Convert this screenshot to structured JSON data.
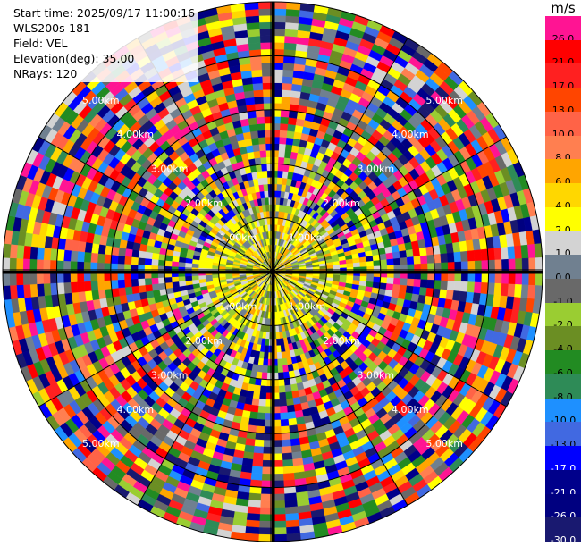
{
  "header": {
    "start_time": "Start time: 2025/09/17 11:00:16",
    "station": "WLS200s-181",
    "field": "Field: VEL",
    "elevation": "Elevation(deg): 35.00",
    "nrays": "NRays: 120"
  },
  "colorbar": {
    "unit": "m/s",
    "levels": [
      {
        "label": "26.0",
        "color": "#ff1493"
      },
      {
        "label": "21.0",
        "color": "#ff0000"
      },
      {
        "label": "17.0",
        "color": "#ff2020"
      },
      {
        "label": "13.0",
        "color": "#ff4500"
      },
      {
        "label": "10.0",
        "color": "#ff6347"
      },
      {
        "label": "8.0",
        "color": "#ff7f50"
      },
      {
        "label": "6.0",
        "color": "#ffa500"
      },
      {
        "label": "4.0",
        "color": "#ffd700"
      },
      {
        "label": "2.0",
        "color": "#ffff00"
      },
      {
        "label": "1.0",
        "color": "#d3d3d3"
      },
      {
        "label": "0.0",
        "color": "#708090"
      },
      {
        "label": "-1.0",
        "color": "#696969"
      },
      {
        "label": "-2.0",
        "color": "#9acd32"
      },
      {
        "label": "-4.0",
        "color": "#6b8e23"
      },
      {
        "label": "-6.0",
        "color": "#228b22"
      },
      {
        "label": "-8.0",
        "color": "#2e8b57"
      },
      {
        "label": "-10.0",
        "color": "#1e90ff"
      },
      {
        "label": "-13.0",
        "color": "#4169e1"
      },
      {
        "label": "-17.0",
        "color": "#0000ff"
      },
      {
        "label": "-21.0",
        "color": "#00008b"
      },
      {
        "label": "-26.0",
        "color": "#000080"
      },
      {
        "label": "-30.0",
        "color": "#191970"
      }
    ]
  },
  "chart_data": {
    "type": "heatmap",
    "projection": "polar PPI",
    "nrays": 120,
    "range_ring_labels": [
      "1.00km",
      "2.00km",
      "3.00km",
      "4.00km",
      "5.00km"
    ],
    "grid": true
  }
}
